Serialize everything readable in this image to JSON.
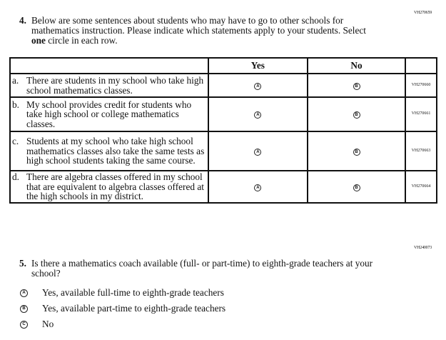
{
  "q4": {
    "id": "VH270659",
    "number": "4.",
    "text_pre": "Below are some sentences about students who may have to go to other schools for mathematics instruction. Please indicate which statements apply to your students. Select ",
    "text_bold": "one",
    "text_post": " circle in each row.",
    "headers": [
      "",
      "Yes",
      "No",
      ""
    ],
    "rows": [
      {
        "letter": "a.",
        "text": "There are students in my school who take high school mathematics classes.",
        "yes": "A",
        "no": "B",
        "id": "VH270660"
      },
      {
        "letter": "b.",
        "text": "My school provides credit for students who take high school or college mathematics classes.",
        "yes": "A",
        "no": "B",
        "id": "VH270661"
      },
      {
        "letter": "c.",
        "text": "Students at my school who take high school mathematics classes also take the same tests as high school students taking the same course.",
        "yes": "A",
        "no": "B",
        "id": "VH270663"
      },
      {
        "letter": "d.",
        "text": "There are algebra classes offered in my school that are equivalent to algebra classes offered at the high schools in my district.",
        "yes": "A",
        "no": "B",
        "id": "VH270664"
      }
    ]
  },
  "q5": {
    "id": "VH240073",
    "number": "5.",
    "text": "Is there a mathematics coach available (full- or part-time) to eighth-grade teachers at your school?",
    "options": [
      {
        "letter": "A",
        "label": "Yes, available full-time to eighth-grade teachers"
      },
      {
        "letter": "B",
        "label": "Yes, available part-time to eighth-grade teachers"
      },
      {
        "letter": "C",
        "label": "No"
      }
    ]
  }
}
